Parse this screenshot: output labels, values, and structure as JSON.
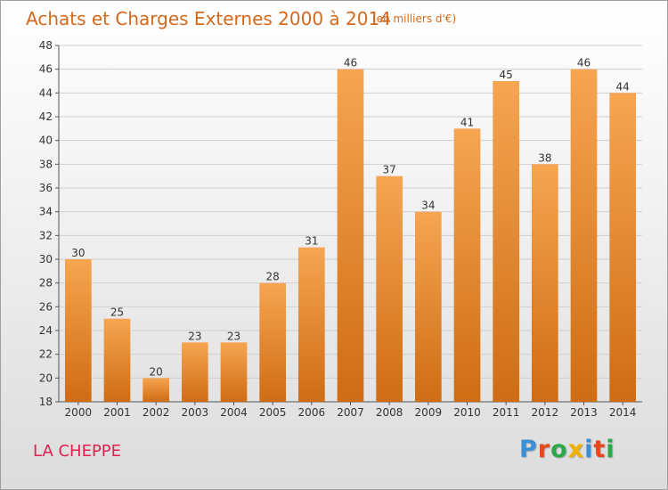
{
  "header": {
    "title": "Achats et Charges Externes 2000 à 2014",
    "subtitle": "(en milliers d'€)"
  },
  "footer": {
    "commune": "LA CHEPPE",
    "logo_text": "Proxiti",
    "logo_colors": [
      "#3b8fd4",
      "#e8481c",
      "#2aa84a",
      "#f0b400",
      "#3b8fd4",
      "#e8481c",
      "#2aa84a"
    ]
  },
  "chart_data": {
    "type": "bar",
    "title": "Achats et Charges Externes 2000 à 2014",
    "subtitle": "(en milliers d'€)",
    "categories": [
      "2000",
      "2001",
      "2002",
      "2003",
      "2004",
      "2005",
      "2006",
      "2007",
      "2008",
      "2009",
      "2010",
      "2011",
      "2012",
      "2013",
      "2014"
    ],
    "values": [
      30,
      25,
      20,
      23,
      23,
      28,
      31,
      46,
      37,
      34,
      41,
      45,
      38,
      46,
      44
    ],
    "ylim": [
      18,
      48
    ],
    "yticks": [
      18,
      20,
      22,
      24,
      26,
      28,
      30,
      32,
      34,
      36,
      38,
      40,
      42,
      44,
      46,
      48
    ],
    "grid": true,
    "bar_color": "#f39c3c",
    "bar_color_dark": "#cc6a12"
  }
}
